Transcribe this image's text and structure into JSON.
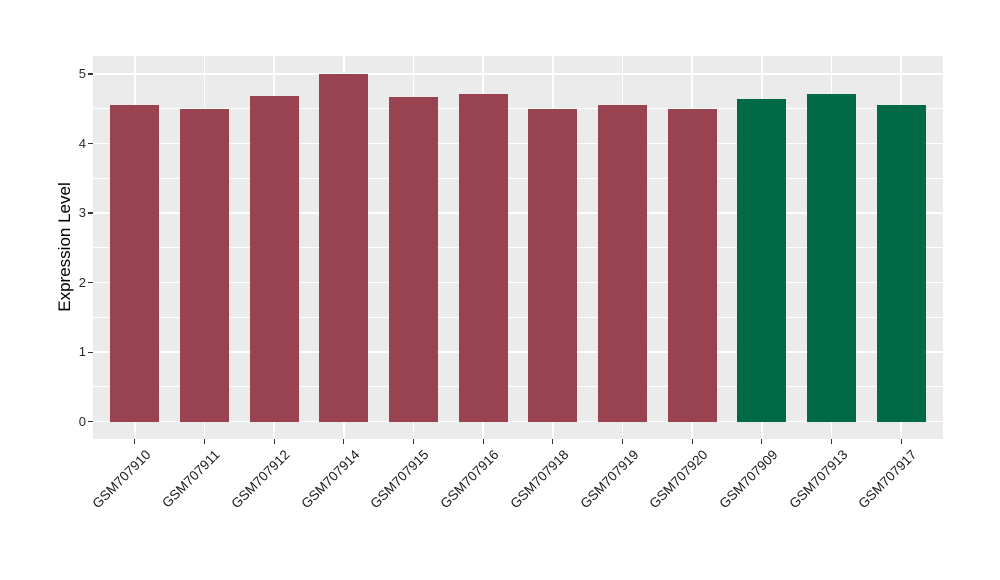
{
  "chart_data": {
    "type": "bar",
    "ylabel": "Expression Level",
    "categories": [
      "GSM707910",
      "GSM707911",
      "GSM707912",
      "GSM707914",
      "GSM707915",
      "GSM707916",
      "GSM707918",
      "GSM707919",
      "GSM707920",
      "GSM707909",
      "GSM707913",
      "GSM707917"
    ],
    "values": [
      4.55,
      4.5,
      4.69,
      5.0,
      4.67,
      4.71,
      4.5,
      4.55,
      4.5,
      4.64,
      4.71,
      4.55
    ],
    "groups": [
      0,
      0,
      0,
      0,
      0,
      0,
      0,
      0,
      0,
      1,
      1,
      1
    ],
    "group_colors": [
      "#9A4350",
      "#006A47"
    ],
    "yticks": [
      0,
      1,
      2,
      3,
      4,
      5
    ],
    "ylim": [
      0,
      5
    ],
    "grid": true,
    "legend_position": "none",
    "panel_background": "#EBEBEB",
    "gridline_color": "#FFFFFF",
    "bar_width_fraction": 0.7
  }
}
